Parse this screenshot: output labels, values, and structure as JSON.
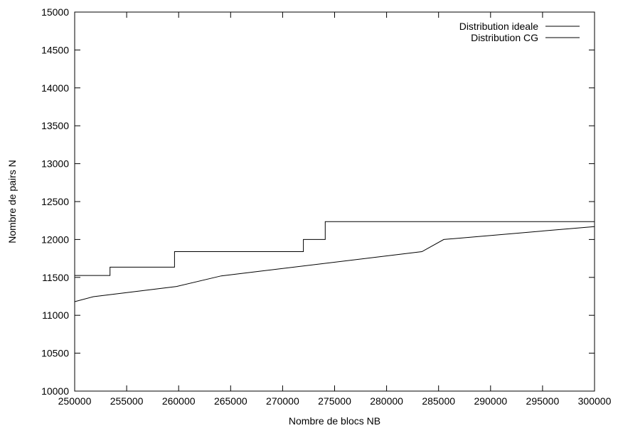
{
  "chart_data": {
    "type": "line",
    "xlabel": "Nombre de blocs NB",
    "ylabel": "Nombre de pairs N",
    "xlim": [
      250000,
      300000
    ],
    "ylim": [
      10000,
      15000
    ],
    "x_ticks": [
      250000,
      255000,
      260000,
      265000,
      270000,
      275000,
      280000,
      285000,
      290000,
      295000,
      300000
    ],
    "y_ticks": [
      10000,
      10500,
      11000,
      11500,
      12000,
      12500,
      13000,
      13500,
      14000,
      14500,
      15000
    ],
    "x_tick_labels": [
      "250000",
      "255000",
      "260000",
      "265000",
      "270000",
      "275000",
      "280000",
      "285000",
      "290000",
      "295000",
      "300000"
    ],
    "y_tick_labels": [
      "10000",
      "10500",
      "11000",
      "11500",
      "12000",
      "12500",
      "13000",
      "13500",
      "14000",
      "14500",
      "15000"
    ],
    "grid": false,
    "legend_position": "top-right",
    "series": [
      {
        "name": "Distribution ideale",
        "color": "#000000",
        "points": [
          [
            250000,
            11525
          ],
          [
            253400,
            11525
          ],
          [
            253400,
            11635
          ],
          [
            259600,
            11635
          ],
          [
            259600,
            11840
          ],
          [
            272000,
            11840
          ],
          [
            272000,
            12000
          ],
          [
            274100,
            12000
          ],
          [
            274100,
            12235
          ],
          [
            300000,
            12235
          ]
        ]
      },
      {
        "name": "Distribution CG",
        "color": "#000000",
        "points": [
          [
            250000,
            11180
          ],
          [
            251800,
            11245
          ],
          [
            259800,
            11380
          ],
          [
            264100,
            11520
          ],
          [
            283400,
            11840
          ],
          [
            285500,
            12000
          ],
          [
            300000,
            12170
          ]
        ]
      }
    ]
  }
}
